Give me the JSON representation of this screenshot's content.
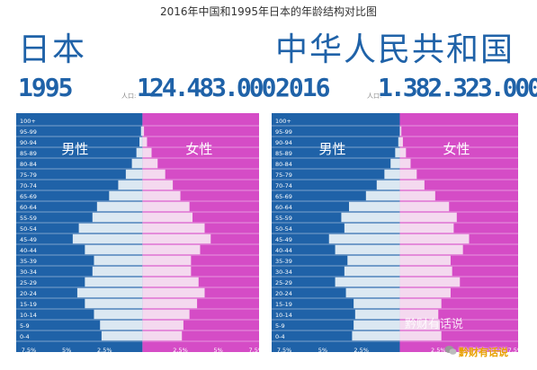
{
  "title": "2016年中国和1995年日本的年龄结构对比图",
  "colors": {
    "male": "#1f62a8",
    "female": "#d54cc6",
    "bar": "#dbe8f2",
    "bar_female": "#f4d9ef",
    "accent": "#1f62a8"
  },
  "watermark": {
    "line1": "黔财有话说",
    "line2": "黔财有话说"
  },
  "chart_data": [
    {
      "type": "bar",
      "country": "日本",
      "year": "1995",
      "population_label": "人口:",
      "population": "124.483.000",
      "male_label": "男性",
      "female_label": "女性",
      "categories": [
        "100+",
        "95-99",
        "90-94",
        "85-89",
        "80-84",
        "75-79",
        "70-74",
        "65-69",
        "60-64",
        "55-59",
        "50-54",
        "45-49",
        "40-44",
        "35-39",
        "30-34",
        "25-29",
        "20-24",
        "15-19",
        "10-14",
        "5-9",
        "0-4"
      ],
      "x_ticks": [
        "7.5%",
        "5%",
        "2.5%",
        "2.5%",
        "5%",
        "7.5%"
      ],
      "series": [
        {
          "name": "男性",
          "values": [
            0.0,
            0.1,
            0.2,
            0.4,
            0.7,
            1.1,
            1.6,
            2.2,
            3.0,
            3.3,
            4.2,
            4.6,
            3.8,
            3.2,
            3.3,
            3.8,
            4.3,
            3.8,
            3.2,
            2.8,
            2.7
          ]
        },
        {
          "name": "女性",
          "values": [
            0.0,
            0.1,
            0.3,
            0.6,
            1.0,
            1.5,
            2.0,
            2.5,
            3.1,
            3.3,
            4.1,
            4.5,
            3.8,
            3.2,
            3.2,
            3.7,
            4.1,
            3.6,
            3.1,
            2.7,
            2.6
          ]
        }
      ],
      "xlim": [
        -7.5,
        7.5
      ]
    },
    {
      "type": "bar",
      "country": "中华人民共和国",
      "year": "2016",
      "population_label": "人口:",
      "population": "1.382.323.000",
      "male_label": "男性",
      "female_label": "女性",
      "categories": [
        "100+",
        "95-99",
        "90-94",
        "85-89",
        "80-84",
        "75-79",
        "70-74",
        "65-69",
        "60-64",
        "55-59",
        "50-54",
        "45-49",
        "40-44",
        "35-39",
        "30-34",
        "25-29",
        "20-24",
        "15-19",
        "10-14",
        "5-9",
        "0-4"
      ],
      "x_ticks": [
        "7.5%",
        "5%",
        "2.5%",
        "2.5%",
        "5%",
        "7.5%"
      ],
      "series": [
        {
          "name": "男性",
          "values": [
            0.0,
            0.0,
            0.1,
            0.3,
            0.6,
            1.0,
            1.5,
            2.2,
            3.3,
            3.8,
            3.6,
            4.6,
            4.2,
            3.4,
            3.6,
            4.2,
            3.5,
            3.0,
            2.9,
            3.0,
            3.1
          ]
        },
        {
          "name": "女性",
          "values": [
            0.0,
            0.1,
            0.2,
            0.4,
            0.7,
            1.1,
            1.6,
            2.3,
            3.2,
            3.7,
            3.5,
            4.5,
            4.1,
            3.3,
            3.4,
            3.9,
            3.3,
            2.7,
            2.5,
            2.6,
            2.7
          ]
        }
      ],
      "xlim": [
        -7.5,
        7.5
      ]
    }
  ]
}
